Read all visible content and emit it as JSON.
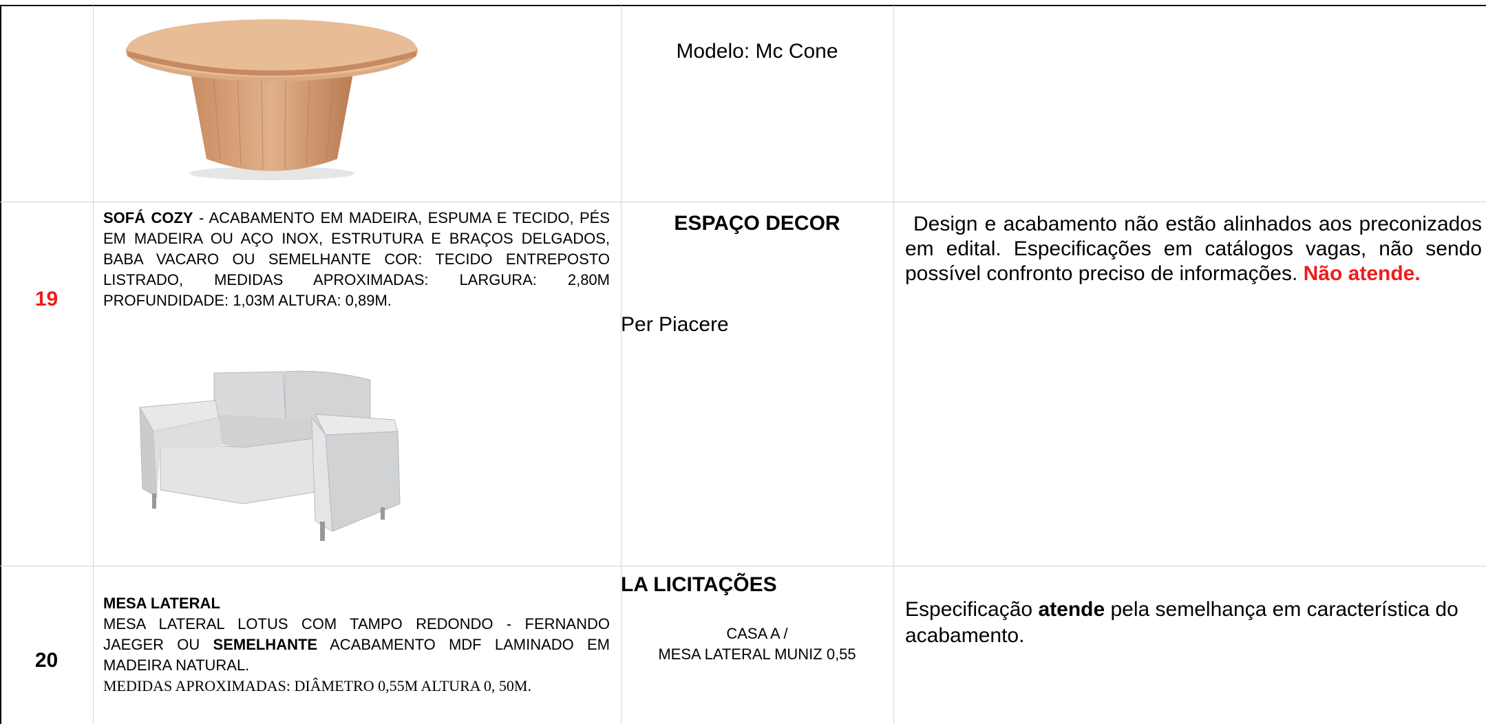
{
  "rows": [
    {
      "model": "Modelo: Mc Cone"
    },
    {
      "number": "19",
      "description": {
        "title": "SOFÁ COZY",
        "text": "- ACABAMENTO EM MADEIRA, ESPUMA E TECIDO, PÉS EM MADEIRA OU AÇO INOX, ESTRUTURA E BRAÇOS DELGADOS, BABA VACARO OU SEMELHANTE COR: TECIDO ENTREPOSTO LISTRADO, MEDIDAS APROXIMADAS: LARGURA: 2,80M PROFUNDIDADE: 1,03M ALTURA: 0,89M."
      },
      "supplier": "ESPAÇO DECOR",
      "brand": "Per Piacere",
      "analysis": {
        "text": "Design e acabamento não estão alinhados aos preconizados em edital. Especificações em catálogos vagas, não sendo possível confronto preciso de informações.",
        "verdict": "Não atende."
      }
    },
    {
      "number": "20",
      "description": {
        "title": "MESA LATERAL",
        "text_before": "MESA LATERAL LOTUS COM TAMPO REDONDO - FERNANDO JAEGER OU",
        "emphasis": "SEMELHANTE",
        "text_after": "ACABAMENTO MDF LAMINADO EM MADEIRA NATURAL.",
        "measures": "MEDIDAS APROXIMADAS: DIÂMETRO 0,55M ALTURA 0, 50M."
      },
      "supplier": "LA LICITAÇÕES",
      "brand_line1": "CASA A /",
      "brand_line2": "MESA LATERAL MUNIZ 0,55",
      "analysis": {
        "before": "Especificação",
        "emphasis": "atende",
        "after": "pela semelhança em característica do acabamento."
      }
    }
  ]
}
